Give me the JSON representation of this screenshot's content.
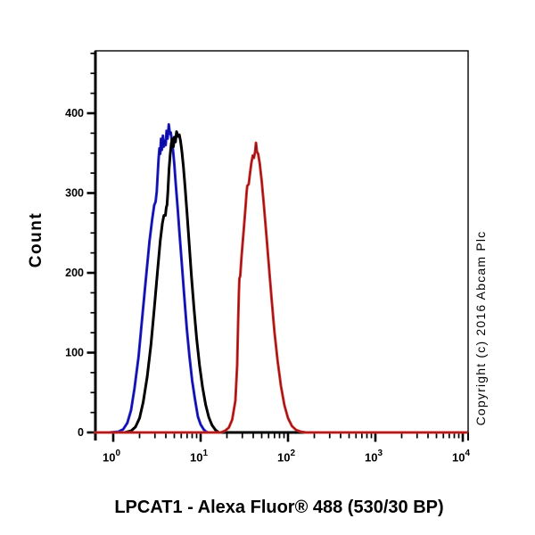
{
  "page": {
    "background": "#ffffff",
    "title": "LPCAT1 - Alexa Fluor® 488 (530/30 BP)",
    "copyright": "Copyright (c) 2016 Abcam Plc"
  },
  "chart_data": {
    "type": "line",
    "subtype": "flow-cytometry-histogram",
    "title": "LPCAT1 - Alexa Fluor® 488 (530/30 BP)",
    "xlabel": "LPCAT1 - Alexa Fluor® 488 (530/30 BP)",
    "ylabel": "Count",
    "x_scale": "log10",
    "xlim": [
      0.61,
      11400
    ],
    "ylim": [
      0,
      480
    ],
    "grid": false,
    "legend": "none",
    "x_axis": {
      "ticks": [
        {
          "base": "10",
          "exp": "0",
          "value": 1
        },
        {
          "base": "10",
          "exp": "1",
          "value": 10
        },
        {
          "base": "10",
          "exp": "2",
          "value": 100
        },
        {
          "base": "10",
          "exp": "3",
          "value": 1000
        },
        {
          "base": "10",
          "exp": "4",
          "value": 10000
        }
      ],
      "minor_digits": [
        2,
        3,
        4,
        5,
        6,
        7,
        8,
        9
      ]
    },
    "y_axis": {
      "major_ticks": [
        0,
        100,
        200,
        300,
        400
      ],
      "minor_step": 25,
      "minor_max": 475
    },
    "series": [
      {
        "name": "blue",
        "color": "#2a2ac8",
        "core_color": "#0909a8",
        "peak": {
          "x": 4.3,
          "count": 386
        },
        "points": [
          [
            0.9,
            0
          ],
          [
            1.15,
            1
          ],
          [
            1.3,
            4
          ],
          [
            1.45,
            12
          ],
          [
            1.6,
            28
          ],
          [
            1.75,
            55
          ],
          [
            1.95,
            95
          ],
          [
            2.15,
            145
          ],
          [
            2.35,
            190
          ],
          [
            2.6,
            240
          ],
          [
            2.8,
            268
          ],
          [
            2.95,
            285
          ],
          [
            3.05,
            289
          ],
          [
            3.15,
            302
          ],
          [
            3.22,
            322
          ],
          [
            3.3,
            342
          ],
          [
            3.38,
            356
          ],
          [
            3.45,
            349
          ],
          [
            3.52,
            368
          ],
          [
            3.6,
            354
          ],
          [
            3.7,
            372
          ],
          [
            3.78,
            358
          ],
          [
            3.88,
            366
          ],
          [
            3.98,
            360
          ],
          [
            4.08,
            378
          ],
          [
            4.18,
            368
          ],
          [
            4.32,
            386
          ],
          [
            4.45,
            374
          ],
          [
            4.55,
            376
          ],
          [
            4.7,
            364
          ],
          [
            4.85,
            352
          ],
          [
            5.0,
            336
          ],
          [
            5.2,
            310
          ],
          [
            5.45,
            282
          ],
          [
            5.75,
            248
          ],
          [
            6.1,
            210
          ],
          [
            6.5,
            170
          ],
          [
            6.95,
            130
          ],
          [
            7.45,
            95
          ],
          [
            8.0,
            65
          ],
          [
            8.6,
            42
          ],
          [
            9.3,
            20
          ],
          [
            10.0,
            10
          ],
          [
            10.8,
            4
          ],
          [
            11.5,
            1
          ],
          [
            12.2,
            0
          ]
        ]
      },
      {
        "name": "black",
        "color": "#000000",
        "core_color": "#000000",
        "peak": {
          "x": 5.3,
          "count": 377
        },
        "points": [
          [
            1.35,
            0
          ],
          [
            1.6,
            2
          ],
          [
            1.8,
            7
          ],
          [
            2.0,
            18
          ],
          [
            2.2,
            38
          ],
          [
            2.45,
            70
          ],
          [
            2.7,
            110
          ],
          [
            2.95,
            155
          ],
          [
            3.2,
            200
          ],
          [
            3.45,
            240
          ],
          [
            3.65,
            262
          ],
          [
            3.8,
            272
          ],
          [
            3.95,
            272
          ],
          [
            4.05,
            282
          ],
          [
            4.12,
            285
          ],
          [
            4.22,
            302
          ],
          [
            4.35,
            330
          ],
          [
            4.5,
            350
          ],
          [
            4.62,
            362
          ],
          [
            4.75,
            368
          ],
          [
            4.88,
            358
          ],
          [
            5.0,
            370
          ],
          [
            5.15,
            364
          ],
          [
            5.3,
            377
          ],
          [
            5.5,
            371
          ],
          [
            5.7,
            373
          ],
          [
            5.9,
            365
          ],
          [
            6.1,
            352
          ],
          [
            6.35,
            333
          ],
          [
            6.65,
            307
          ],
          [
            7.0,
            274
          ],
          [
            7.4,
            236
          ],
          [
            7.85,
            196
          ],
          [
            8.4,
            155
          ],
          [
            9.0,
            118
          ],
          [
            9.7,
            85
          ],
          [
            10.5,
            57
          ],
          [
            11.4,
            35
          ],
          [
            12.4,
            19
          ],
          [
            13.5,
            9
          ],
          [
            14.8,
            3
          ],
          [
            16.2,
            0
          ]
        ]
      },
      {
        "name": "red",
        "color": "#e03030",
        "core_color": "#8c1212",
        "peak": {
          "x": 43,
          "count": 363
        },
        "points": [
          [
            0.62,
            0
          ],
          [
            5,
            0
          ],
          [
            10,
            0
          ],
          [
            14,
            0
          ],
          [
            17,
            0
          ],
          [
            19,
            2
          ],
          [
            21,
            6
          ],
          [
            23,
            16
          ],
          [
            25,
            40
          ],
          [
            26.2,
            85
          ],
          [
            26.9,
            140
          ],
          [
            27.4,
            175
          ],
          [
            27.8,
            193
          ],
          [
            28.4,
            196
          ],
          [
            29.5,
            222
          ],
          [
            31,
            252
          ],
          [
            32.5,
            280
          ],
          [
            33.5,
            300
          ],
          [
            34.2,
            309
          ],
          [
            35.5,
            311
          ],
          [
            36.5,
            322
          ],
          [
            38,
            337
          ],
          [
            39.5,
            347
          ],
          [
            40.8,
            344
          ],
          [
            42,
            352
          ],
          [
            43,
            363
          ],
          [
            44,
            352
          ],
          [
            45.5,
            349
          ],
          [
            47.5,
            337
          ],
          [
            50,
            315
          ],
          [
            53,
            284
          ],
          [
            56.5,
            248
          ],
          [
            60.5,
            208
          ],
          [
            65,
            166
          ],
          [
            70,
            126
          ],
          [
            76,
            90
          ],
          [
            83,
            58
          ],
          [
            91,
            34
          ],
          [
            100,
            18
          ],
          [
            111,
            8
          ],
          [
            124,
            3
          ],
          [
            140,
            1
          ],
          [
            160,
            0
          ],
          [
            300,
            0
          ],
          [
            1000,
            0
          ],
          [
            11000,
            0
          ]
        ]
      }
    ]
  }
}
